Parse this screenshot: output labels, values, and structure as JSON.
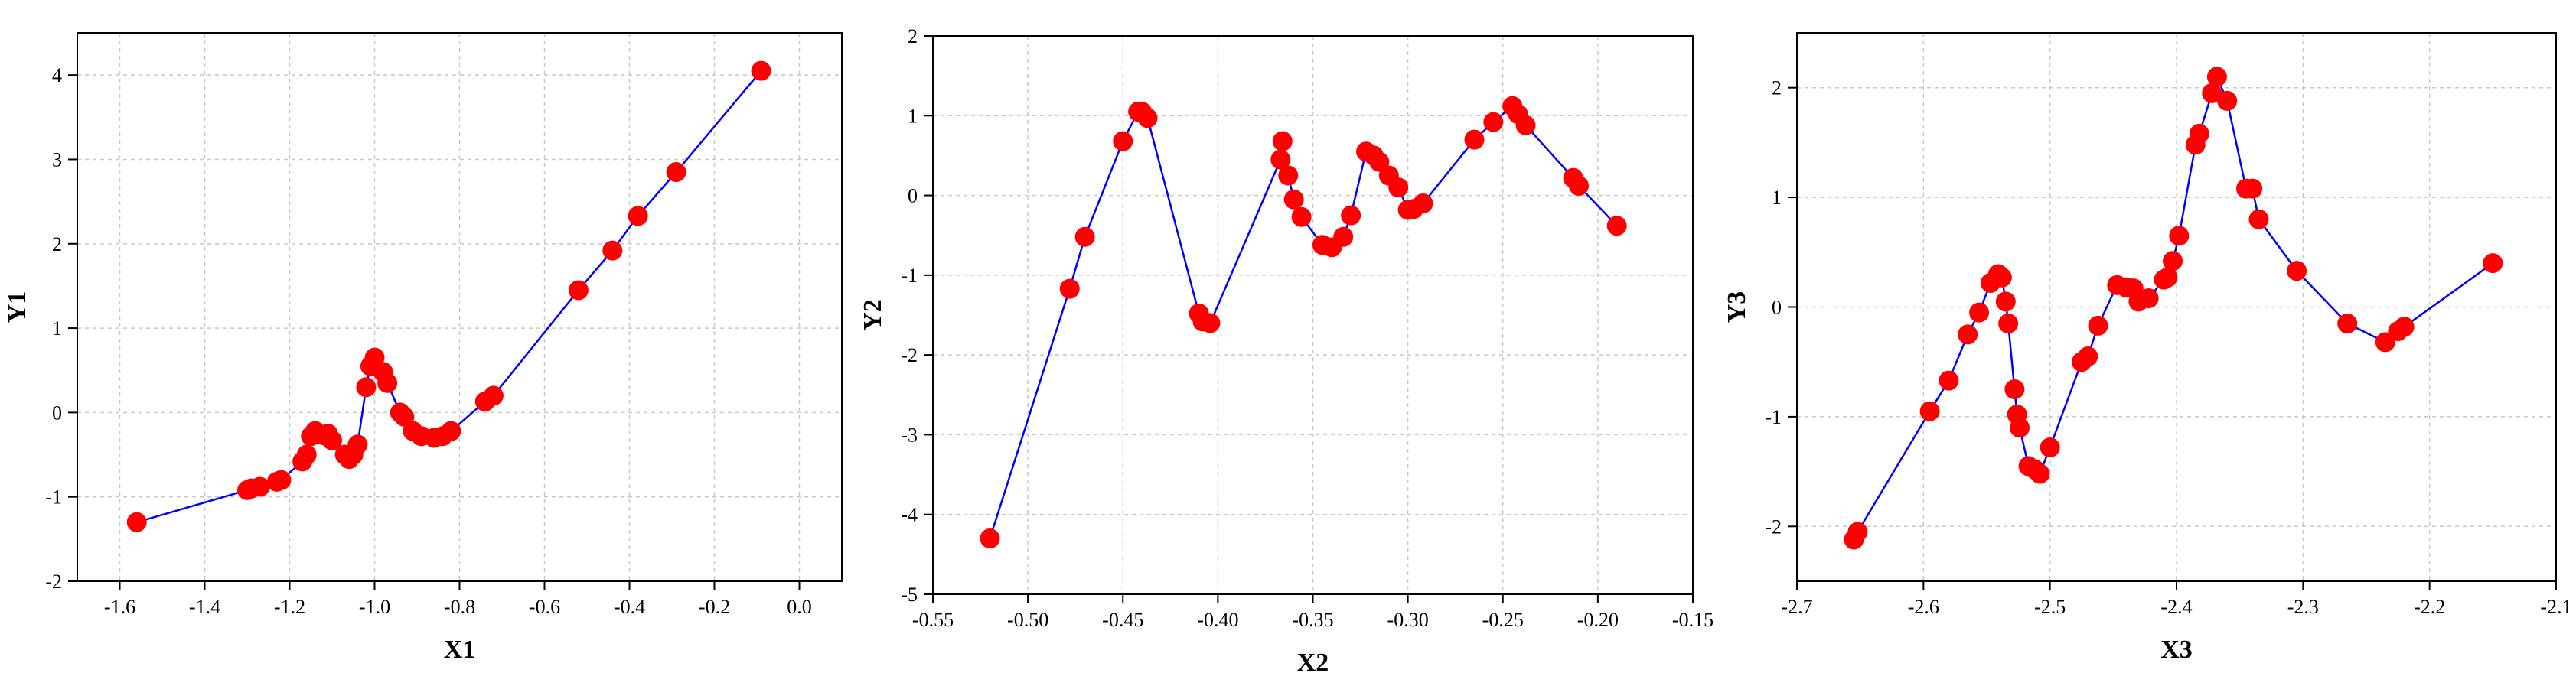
{
  "chart_data": [
    {
      "type": "line",
      "xlabel": "X1",
      "ylabel": "Y1",
      "grid": true,
      "xlim": [
        -1.7,
        0.1
      ],
      "ylim": [
        -2,
        4.5
      ],
      "xticks": [
        -1.6,
        -1.4,
        -1.2,
        {
          "value": -1.0,
          "label": "-1.0"
        },
        -0.8,
        -0.6,
        -0.4,
        -0.2,
        {
          "value": 0.0,
          "label": "0.0"
        }
      ],
      "yticks": [
        -2,
        -1,
        0,
        1,
        2,
        3,
        4
      ],
      "x": [
        -1.56,
        -1.3,
        -1.29,
        -1.27,
        -1.23,
        -1.22,
        -1.17,
        -1.16,
        -1.15,
        -1.14,
        -1.12,
        -1.11,
        -1.1,
        -1.07,
        -1.06,
        -1.05,
        -1.04,
        -1.02,
        -1.01,
        -1.0,
        -0.98,
        -0.97,
        -0.94,
        -0.93,
        -0.91,
        -0.89,
        -0.86,
        -0.84,
        -0.82,
        -0.74,
        -0.72,
        -0.52,
        -0.44,
        -0.38,
        -0.29,
        -0.09
      ],
      "series": [
        {
          "color": "#0000ff",
          "marker_color": "#ff0000",
          "values": [
            -1.3,
            -0.92,
            -0.9,
            -0.88,
            -0.82,
            -0.8,
            -0.58,
            -0.5,
            -0.28,
            -0.22,
            -0.27,
            -0.25,
            -0.33,
            -0.5,
            -0.55,
            -0.5,
            -0.38,
            0.3,
            0.55,
            0.65,
            0.48,
            0.35,
            0.0,
            -0.05,
            -0.22,
            -0.28,
            -0.3,
            -0.28,
            -0.22,
            0.13,
            0.2,
            1.45,
            1.92,
            2.33,
            2.85,
            4.05
          ]
        }
      ]
    },
    {
      "type": "line",
      "xlabel": "X2",
      "ylabel": "Y2",
      "grid": true,
      "xlim": [
        -0.55,
        -0.15
      ],
      "ylim": [
        -5,
        2
      ],
      "xticks": [
        -0.55,
        {
          "value": -0.5,
          "label": "-0.50"
        },
        -0.45,
        {
          "value": -0.4,
          "label": "-0.40"
        },
        -0.35,
        {
          "value": -0.3,
          "label": "-0.30"
        },
        -0.25,
        {
          "value": -0.2,
          "label": "-0.20"
        },
        -0.15
      ],
      "yticks": [
        -5,
        -4,
        -3,
        -2,
        -1,
        0,
        1,
        2
      ],
      "x": [
        -0.52,
        -0.478,
        -0.47,
        -0.45,
        -0.442,
        -0.44,
        -0.437,
        -0.41,
        -0.408,
        -0.404,
        -0.367,
        -0.366,
        -0.363,
        -0.36,
        -0.356,
        -0.345,
        -0.34,
        -0.334,
        -0.33,
        -0.322,
        -0.318,
        -0.315,
        -0.31,
        -0.305,
        -0.3,
        -0.297,
        -0.292,
        -0.265,
        -0.255,
        -0.245,
        -0.242,
        -0.238,
        -0.213,
        -0.21,
        -0.19
      ],
      "series": [
        {
          "color": "#0000ff",
          "marker_color": "#ff0000",
          "values": [
            -4.3,
            -1.17,
            -0.52,
            0.68,
            1.05,
            1.05,
            0.97,
            -1.48,
            -1.58,
            -1.6,
            0.45,
            0.68,
            0.25,
            -0.05,
            -0.27,
            -0.62,
            -0.65,
            -0.52,
            -0.25,
            0.55,
            0.5,
            0.42,
            0.25,
            0.1,
            -0.18,
            -0.17,
            -0.1,
            0.7,
            0.92,
            1.12,
            1.02,
            0.88,
            0.22,
            0.12,
            -0.38
          ]
        }
      ]
    },
    {
      "type": "line",
      "xlabel": "X3",
      "ylabel": "Y3",
      "grid": true,
      "xlim": [
        -2.7,
        -2.1
      ],
      "ylim": [
        -2.5,
        2.5
      ],
      "xticks": [
        -2.7,
        -2.6,
        -2.5,
        -2.4,
        -2.3,
        -2.2,
        -2.1
      ],
      "yticks": [
        -2,
        -1,
        0,
        1,
        2
      ],
      "x": [
        -2.655,
        -2.652,
        -2.595,
        -2.58,
        -2.565,
        -2.556,
        -2.547,
        -2.541,
        -2.538,
        -2.535,
        -2.533,
        -2.528,
        -2.526,
        -2.524,
        -2.517,
        -2.512,
        -2.508,
        -2.5,
        -2.475,
        -2.47,
        -2.462,
        -2.447,
        -2.44,
        -2.434,
        -2.43,
        -2.422,
        -2.41,
        -2.407,
        -2.403,
        -2.398,
        -2.385,
        -2.382,
        -2.372,
        -2.368,
        -2.36,
        -2.345,
        -2.34,
        -2.335,
        -2.305,
        -2.265,
        -2.235,
        -2.225,
        -2.22,
        -2.15
      ],
      "series": [
        {
          "color": "#0000ff",
          "marker_color": "#ff0000",
          "values": [
            -2.12,
            -2.05,
            -0.95,
            -0.67,
            -0.25,
            -0.05,
            0.22,
            0.3,
            0.27,
            0.05,
            -0.15,
            -0.75,
            -0.98,
            -1.1,
            -1.45,
            -1.48,
            -1.52,
            -1.28,
            -0.5,
            -0.45,
            -0.17,
            0.2,
            0.18,
            0.17,
            0.05,
            0.08,
            0.25,
            0.27,
            0.42,
            0.65,
            1.48,
            1.58,
            1.95,
            2.1,
            1.88,
            1.08,
            1.08,
            0.8,
            0.33,
            -0.15,
            -0.32,
            -0.22,
            -0.18,
            0.4
          ]
        }
      ]
    }
  ]
}
